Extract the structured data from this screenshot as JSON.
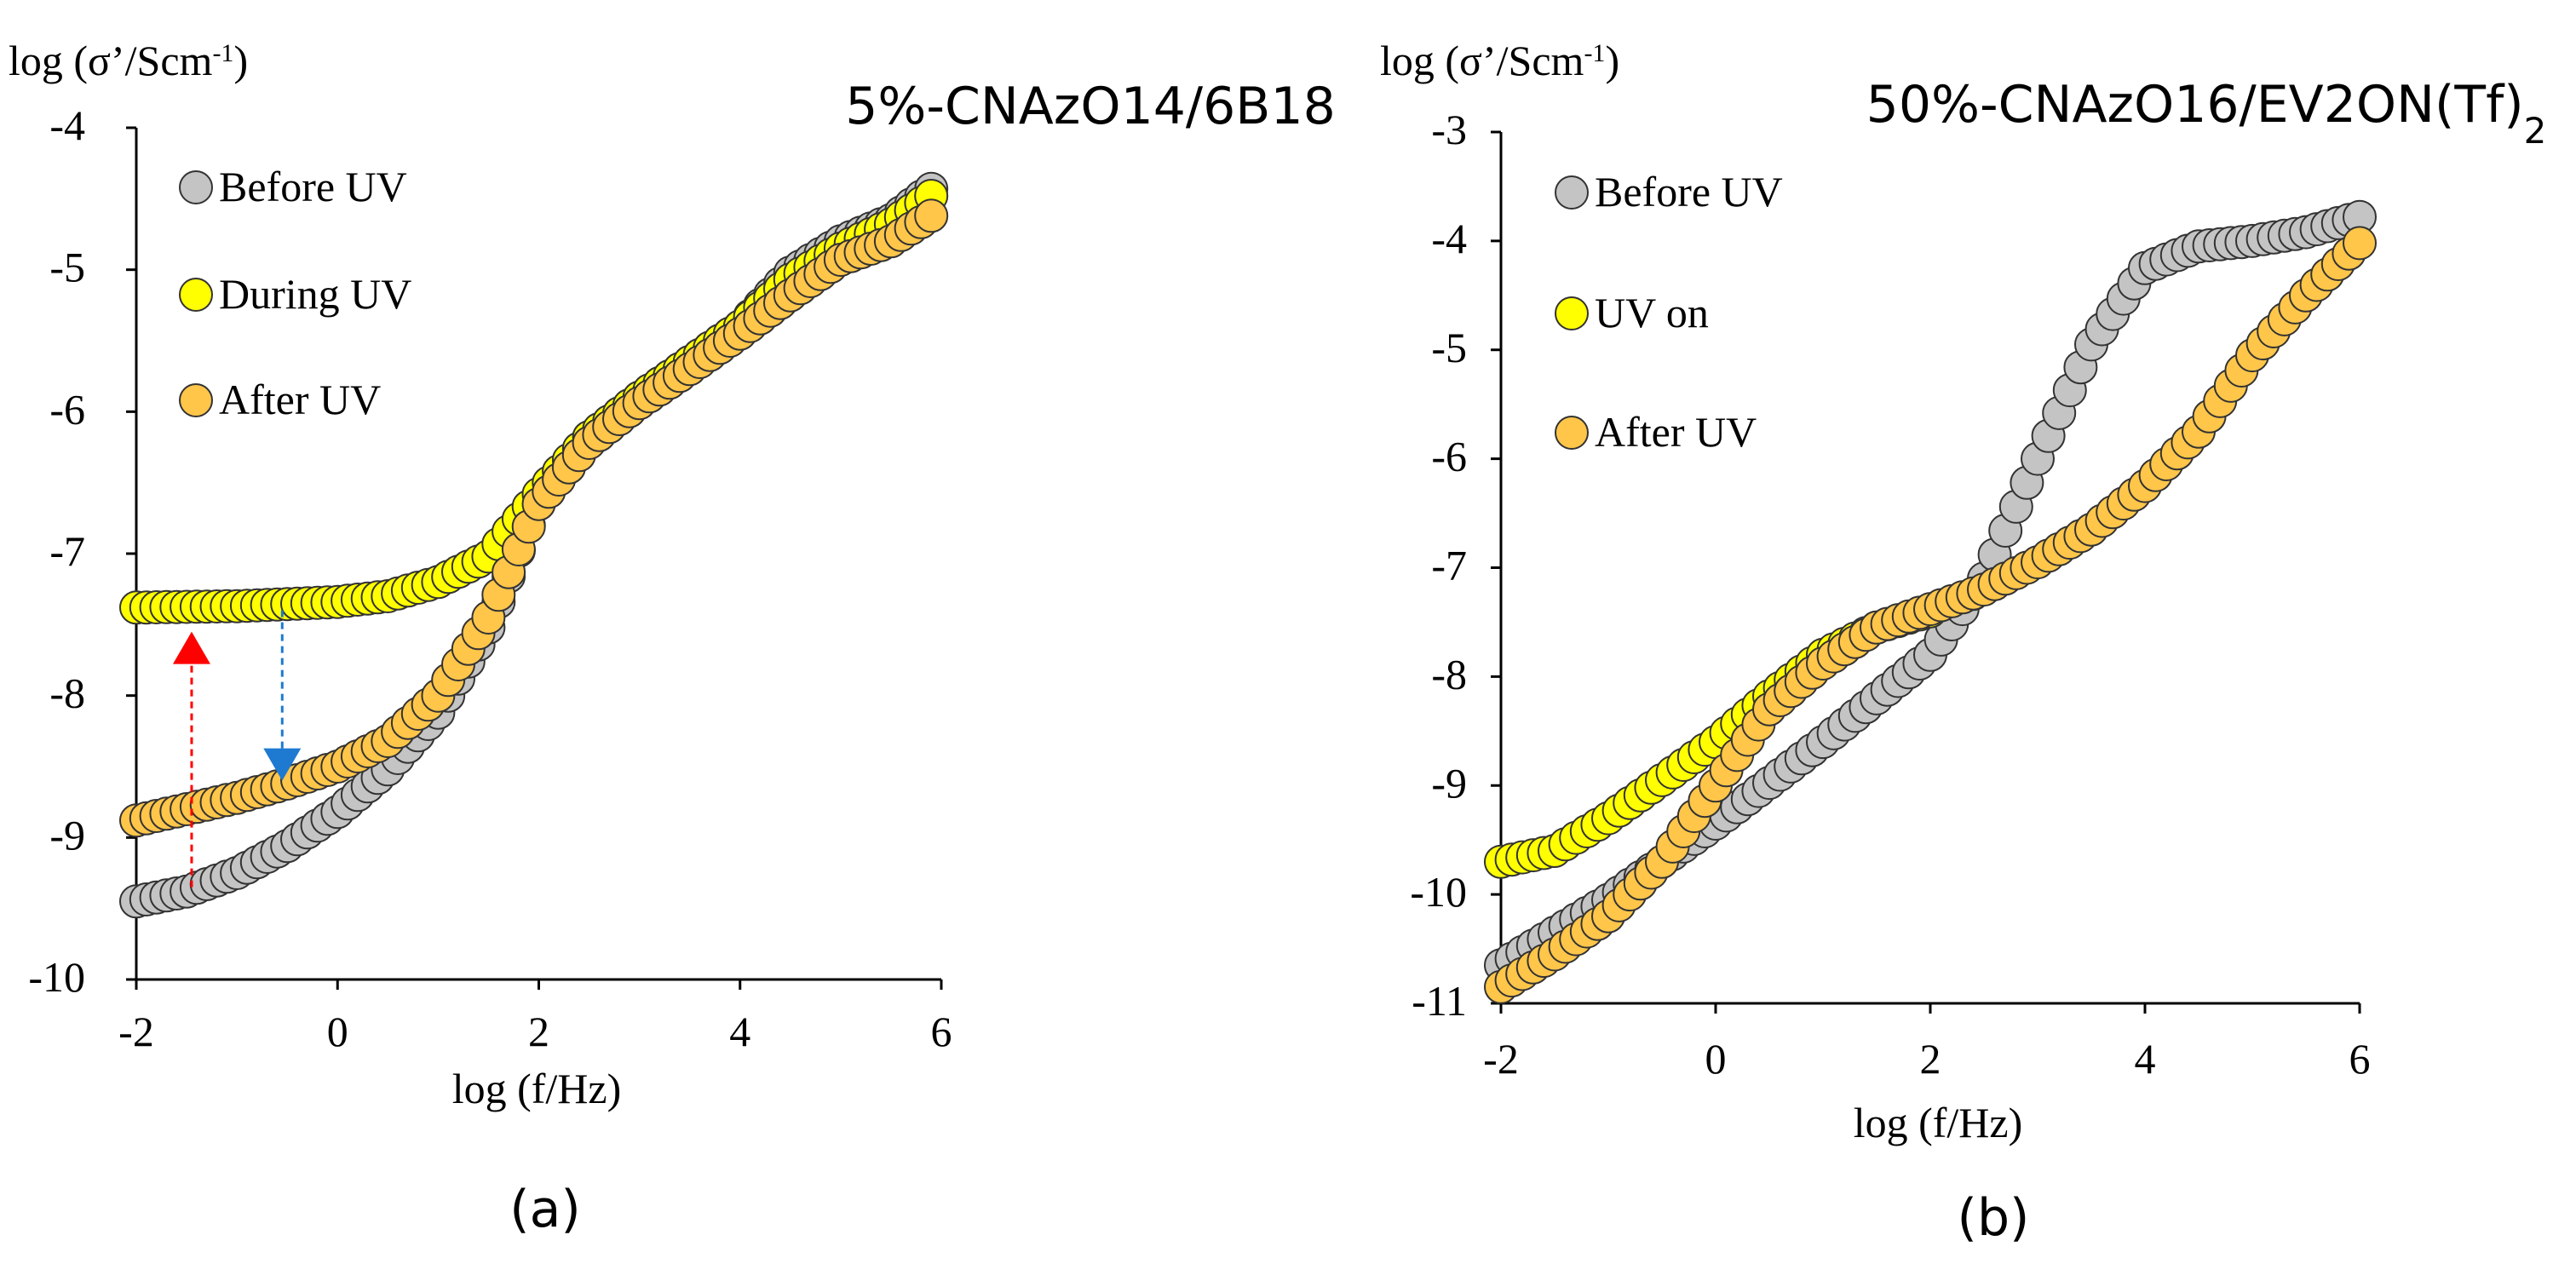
{
  "chart_data": [
    {
      "type": "scatter",
      "panel_label": "(a)",
      "title": "5%-CNAzO14/6B18",
      "ylabel_prefix": "log (σ’/Scm",
      "ylabel_sup": "-1",
      "ylabel_suffix": ")",
      "xlabel": "log (f/Hz)",
      "xlim": [
        -2,
        6
      ],
      "ylim": [
        -10,
        -4
      ],
      "xticks": [
        "-2",
        "0",
        "2",
        "4",
        "6"
      ],
      "yticks": [
        "-4",
        "-5",
        "-6",
        "-7",
        "-8",
        "-9",
        "-10"
      ],
      "series": [
        {
          "name": "Before UV",
          "color": "#c4c4c4",
          "points": [
            [
              -2.0,
              -9.45
            ],
            [
              -1.5,
              -9.38
            ],
            [
              -1.0,
              -9.25
            ],
            [
              -0.5,
              -9.06
            ],
            [
              0.0,
              -8.82
            ],
            [
              0.5,
              -8.52
            ],
            [
              1.0,
              -8.12
            ],
            [
              1.5,
              -7.52
            ],
            [
              2.0,
              -6.62
            ],
            [
              2.5,
              -6.18
            ],
            [
              3.0,
              -5.9
            ],
            [
              3.5,
              -5.65
            ],
            [
              4.0,
              -5.4
            ],
            [
              4.5,
              -5.02
            ],
            [
              5.0,
              -4.8
            ],
            [
              5.5,
              -4.65
            ],
            [
              5.9,
              -4.43
            ]
          ]
        },
        {
          "name": "During UV",
          "color": "#ffff00",
          "points": [
            [
              -2.0,
              -7.38
            ],
            [
              -1.0,
              -7.37
            ],
            [
              0.0,
              -7.34
            ],
            [
              0.5,
              -7.3
            ],
            [
              1.0,
              -7.2
            ],
            [
              1.5,
              -7.02
            ],
            [
              2.0,
              -6.58
            ],
            [
              2.5,
              -6.18
            ],
            [
              3.0,
              -5.9
            ],
            [
              3.5,
              -5.65
            ],
            [
              4.0,
              -5.4
            ],
            [
              4.5,
              -5.07
            ],
            [
              5.0,
              -4.85
            ],
            [
              5.5,
              -4.68
            ],
            [
              5.9,
              -4.48
            ]
          ]
        },
        {
          "name": "After UV",
          "color": "#ffc64a",
          "points": [
            [
              -2.0,
              -8.88
            ],
            [
              -1.5,
              -8.8
            ],
            [
              -1.0,
              -8.72
            ],
            [
              -0.5,
              -8.62
            ],
            [
              0.0,
              -8.5
            ],
            [
              0.5,
              -8.32
            ],
            [
              1.0,
              -8.0
            ],
            [
              1.5,
              -7.45
            ],
            [
              2.0,
              -6.65
            ],
            [
              2.5,
              -6.22
            ],
            [
              3.0,
              -5.94
            ],
            [
              3.5,
              -5.7
            ],
            [
              4.0,
              -5.45
            ],
            [
              4.5,
              -5.18
            ],
            [
              5.0,
              -4.93
            ],
            [
              5.5,
              -4.8
            ],
            [
              5.9,
              -4.62
            ]
          ]
        }
      ],
      "annotations": [
        {
          "type": "arrow-up",
          "color": "#ff0000",
          "x": -1.45,
          "y_from": -9.35,
          "y_to": -7.55
        },
        {
          "type": "arrow-down",
          "color": "#1e7ad0",
          "x": -0.55,
          "y_from": -7.4,
          "y_to": -8.6
        }
      ]
    },
    {
      "type": "scatter",
      "panel_label": "(b)",
      "title": "50%-CNAzO16/EV2ON(Tf)",
      "title_sub": "2",
      "ylabel_prefix": "log (σ’/Scm",
      "ylabel_sup": "-1",
      "ylabel_suffix": ")",
      "xlabel": "log (f/Hz)",
      "xlim": [
        -2,
        6
      ],
      "ylim": [
        -11,
        -3
      ],
      "xticks": [
        "-2",
        "0",
        "2",
        "4",
        "6"
      ],
      "yticks": [
        "-3",
        "-4",
        "-5",
        "-6",
        "-7",
        "-8",
        "-9",
        "-10",
        "-11"
      ],
      "series": [
        {
          "name": "Before UV",
          "color": "#c4c4c4",
          "points": [
            [
              -2.0,
              -10.65
            ],
            [
              -1.0,
              -10.05
            ],
            [
              0.0,
              -9.35
            ],
            [
              1.0,
              -8.6
            ],
            [
              2.0,
              -7.8
            ],
            [
              2.5,
              -7.1
            ],
            [
              3.0,
              -6.0
            ],
            [
              3.5,
              -4.95
            ],
            [
              4.0,
              -4.25
            ],
            [
              4.5,
              -4.05
            ],
            [
              5.0,
              -4.0
            ],
            [
              5.5,
              -3.92
            ],
            [
              6.0,
              -3.78
            ]
          ]
        },
        {
          "name": "UV on",
          "color": "#ffff00",
          "points": [
            [
              -2.0,
              -9.7
            ],
            [
              -1.5,
              -9.6
            ],
            [
              -1.0,
              -9.3
            ],
            [
              -0.5,
              -8.95
            ],
            [
              0.0,
              -8.6
            ],
            [
              0.5,
              -8.18
            ],
            [
              1.0,
              -7.8
            ],
            [
              1.5,
              -7.55
            ],
            [
              2.0,
              -7.4
            ]
          ]
        },
        {
          "name": "After UV",
          "color": "#ffc64a",
          "points": [
            [
              -2.0,
              -10.85
            ],
            [
              -1.5,
              -10.55
            ],
            [
              -1.0,
              -10.2
            ],
            [
              -0.5,
              -9.7
            ],
            [
              0.0,
              -9.0
            ],
            [
              0.5,
              -8.3
            ],
            [
              1.0,
              -7.88
            ],
            [
              1.5,
              -7.55
            ],
            [
              2.0,
              -7.38
            ],
            [
              2.5,
              -7.2
            ],
            [
              3.0,
              -6.95
            ],
            [
              3.5,
              -6.65
            ],
            [
              4.0,
              -6.25
            ],
            [
              4.5,
              -5.75
            ],
            [
              5.0,
              -5.05
            ],
            [
              5.5,
              -4.5
            ],
            [
              6.0,
              -4.02
            ]
          ]
        }
      ],
      "annotations": []
    }
  ]
}
